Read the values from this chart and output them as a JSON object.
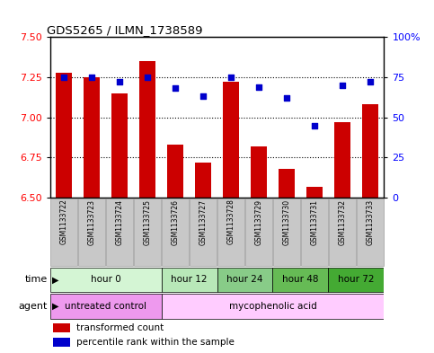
{
  "title": "GDS5265 / ILMN_1738589",
  "samples": [
    "GSM1133722",
    "GSM1133723",
    "GSM1133724",
    "GSM1133725",
    "GSM1133726",
    "GSM1133727",
    "GSM1133728",
    "GSM1133729",
    "GSM1133730",
    "GSM1133731",
    "GSM1133732",
    "GSM1133733"
  ],
  "bar_values": [
    7.28,
    7.25,
    7.15,
    7.35,
    6.83,
    6.72,
    7.22,
    6.82,
    6.68,
    6.57,
    6.97,
    7.08
  ],
  "percentile_values": [
    75,
    75,
    72,
    75,
    68,
    63,
    75,
    69,
    62,
    45,
    70,
    72
  ],
  "ylim_left": [
    6.5,
    7.5
  ],
  "ylim_right": [
    0,
    100
  ],
  "yticks_left": [
    6.5,
    6.75,
    7.0,
    7.25,
    7.5
  ],
  "yticks_right": [
    0,
    25,
    50,
    75,
    100
  ],
  "ytick_labels_right": [
    "0",
    "25",
    "50",
    "75",
    "100%"
  ],
  "bar_color": "#cc0000",
  "scatter_color": "#0000cc",
  "bar_width": 0.6,
  "time_groups": [
    {
      "label": "hour 0",
      "start": 0,
      "end": 3,
      "color": "#d4f5d4"
    },
    {
      "label": "hour 12",
      "start": 4,
      "end": 5,
      "color": "#b8e8b8"
    },
    {
      "label": "hour 24",
      "start": 6,
      "end": 7,
      "color": "#88cc88"
    },
    {
      "label": "hour 48",
      "start": 8,
      "end": 9,
      "color": "#66bb55"
    },
    {
      "label": "hour 72",
      "start": 10,
      "end": 11,
      "color": "#44aa33"
    }
  ],
  "agent_groups": [
    {
      "label": "untreated control",
      "start": 0,
      "end": 3,
      "color": "#ee99ee"
    },
    {
      "label": "mycophenolic acid",
      "start": 4,
      "end": 11,
      "color": "#ffccff"
    }
  ],
  "legend_items": [
    {
      "label": "transformed count",
      "color": "#cc0000"
    },
    {
      "label": "percentile rank within the sample",
      "color": "#0000cc"
    }
  ],
  "sample_box_color": "#c8c8c8",
  "sample_box_edge": "#888888"
}
